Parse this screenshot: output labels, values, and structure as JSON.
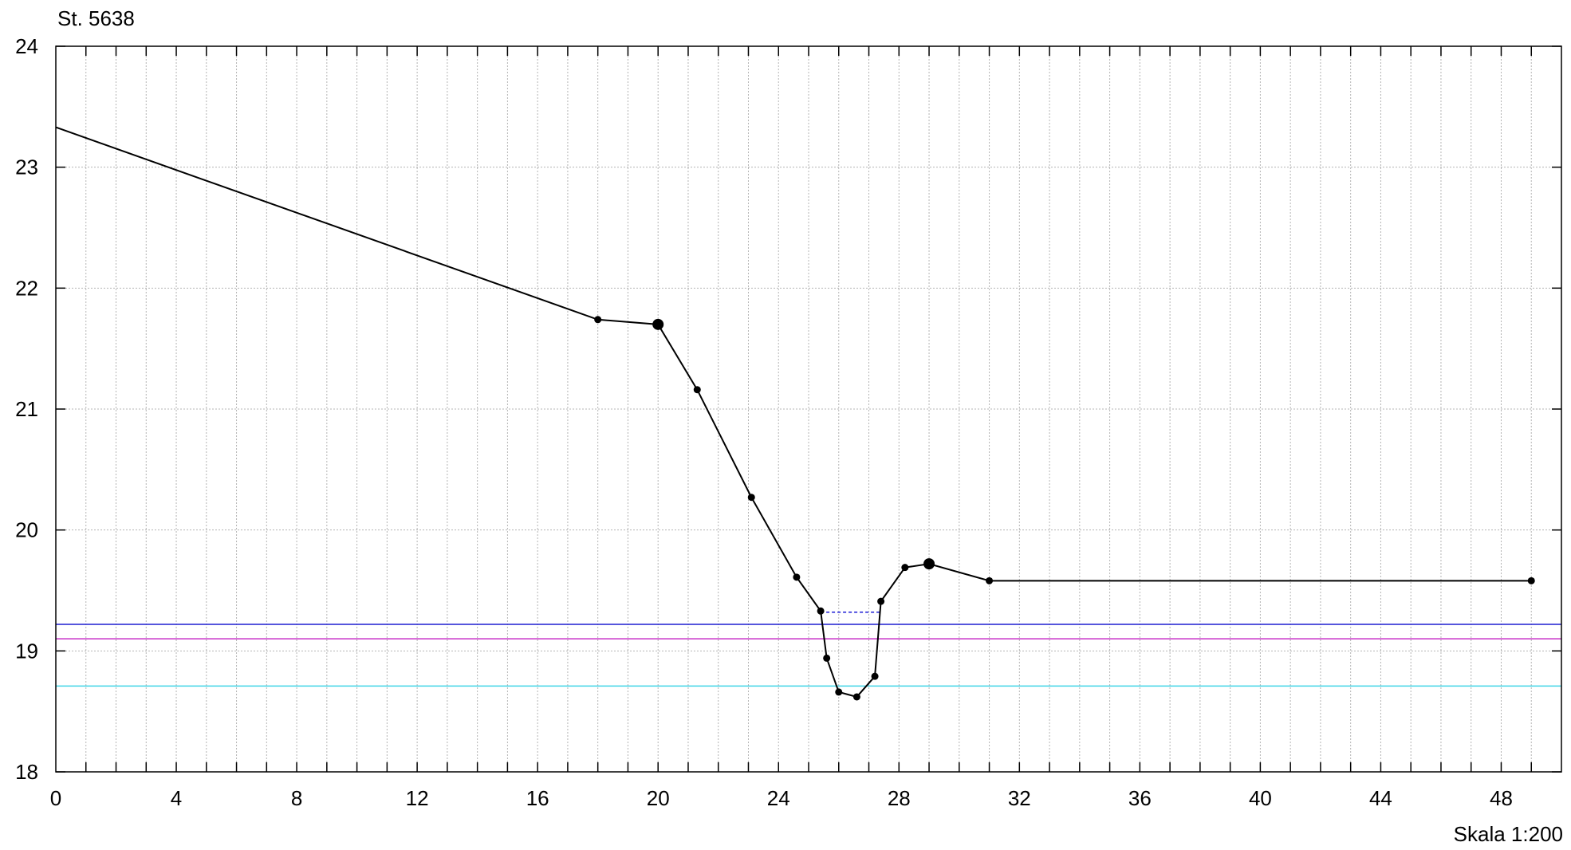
{
  "chart_data": {
    "type": "line",
    "title": "St. 5638",
    "scale_label": "Skala 1:200",
    "xlim": [
      0,
      50
    ],
    "ylim": [
      18,
      24
    ],
    "x_ticks": [
      0,
      4,
      8,
      12,
      16,
      20,
      24,
      28,
      32,
      36,
      40,
      44,
      48
    ],
    "x_tick_labels": [
      "0",
      "4",
      "8",
      "12",
      "16",
      "20",
      "24",
      "28",
      "32",
      "36",
      "40",
      "44",
      "48"
    ],
    "y_ticks": [
      18,
      19,
      20,
      21,
      22,
      23,
      24
    ],
    "y_tick_labels": [
      "18",
      "19",
      "20",
      "21",
      "22",
      "23",
      "24"
    ],
    "x_minor_step": 1,
    "grid": true,
    "profile": {
      "color": "#000000",
      "x": [
        0,
        18,
        20,
        21.3,
        23.1,
        24.6,
        25.4,
        25.6,
        26.0,
        26.6,
        27.2,
        27.4,
        28.2,
        29.0,
        31.0,
        49.0
      ],
      "y": [
        23.33,
        21.74,
        21.7,
        21.16,
        20.27,
        19.61,
        19.33,
        18.94,
        18.66,
        18.62,
        18.79,
        19.41,
        19.69,
        19.72,
        19.58,
        19.58
      ],
      "large_markers_x": [
        20.0,
        29.0
      ]
    },
    "water_surface": {
      "x": [
        25.4,
        27.4
      ],
      "y": 19.32,
      "color": "#1a1ad6",
      "style": "dashed"
    },
    "reference_levels": [
      {
        "y": 19.22,
        "color": "#1f1fd0"
      },
      {
        "y": 19.1,
        "color": "#c830c8"
      },
      {
        "y": 18.71,
        "color": "#40d4e6"
      }
    ]
  }
}
